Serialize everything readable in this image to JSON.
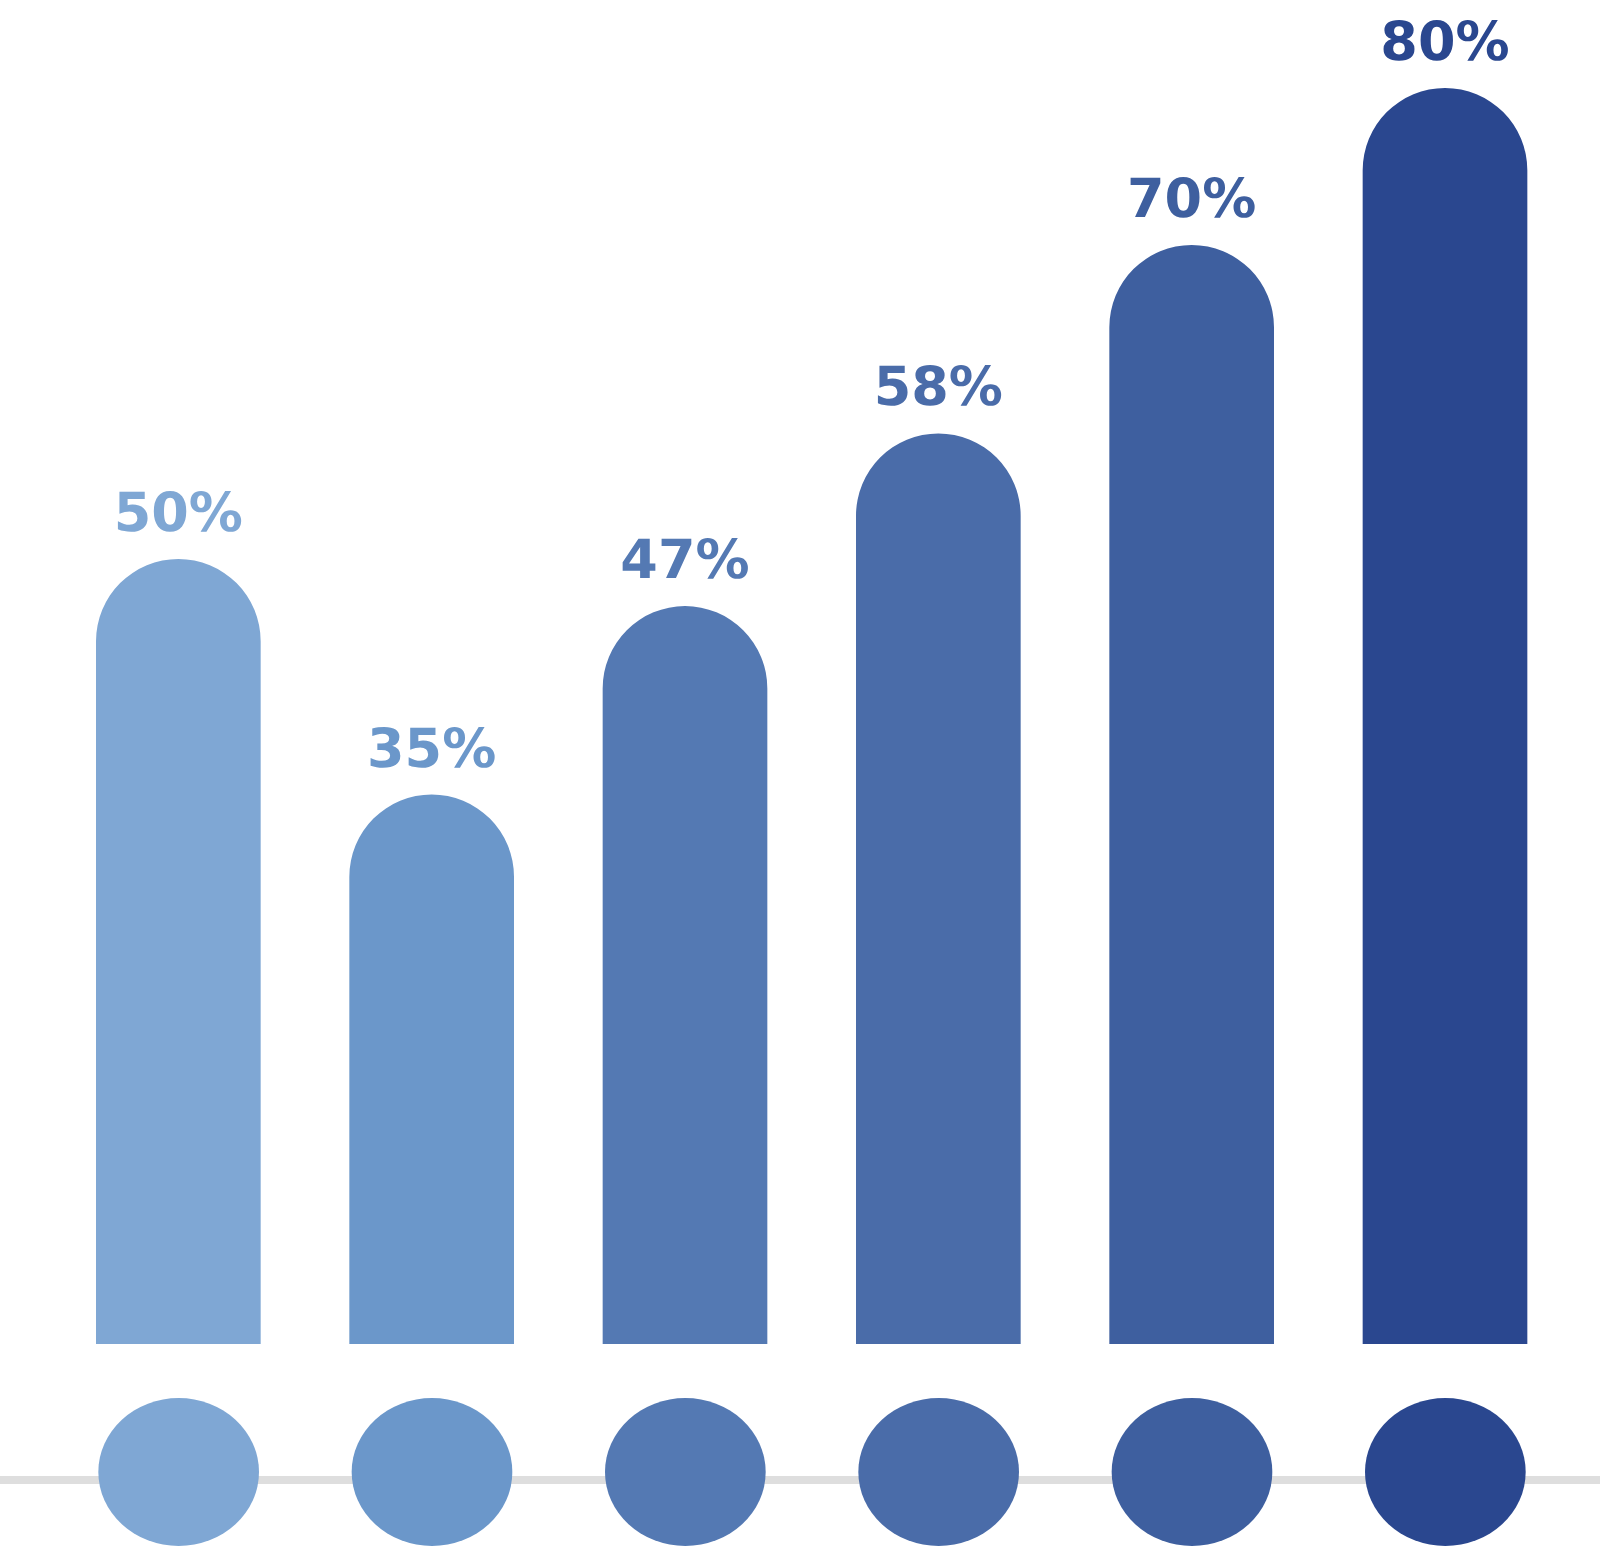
{
  "chart_data": {
    "type": "bar",
    "categories": [
      null,
      null,
      null,
      null,
      null,
      null
    ],
    "values": [
      50,
      35,
      47,
      58,
      70,
      80
    ],
    "colors": [
      "#7fa7d4",
      "#6b97ca",
      "#5479b3",
      "#4a6ca9",
      "#3e5f9f",
      "#2a478f"
    ],
    "value_labels": [
      "50%",
      "35%",
      "47%",
      "58%",
      "70%",
      "80%"
    ]
  }
}
